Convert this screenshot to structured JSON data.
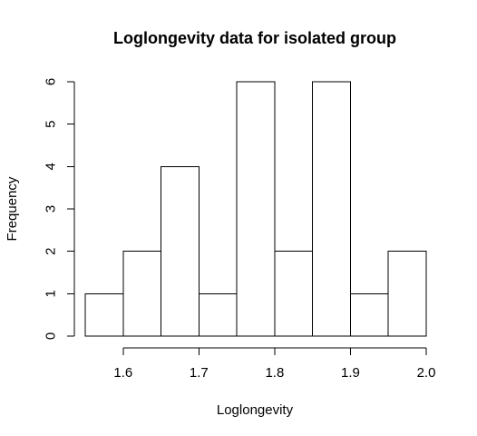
{
  "chart_data": {
    "type": "bar",
    "title": "Loglongevity data for isolated group",
    "xlabel": "Loglongevity",
    "ylabel": "Frequency",
    "bin_edges": [
      1.55,
      1.6,
      1.65,
      1.7,
      1.75,
      1.8,
      1.85,
      1.9,
      1.95,
      2.0
    ],
    "values": [
      1,
      2,
      4,
      1,
      6,
      2,
      6,
      1,
      2
    ],
    "xlim": [
      1.55,
      2.0
    ],
    "ylim": [
      0,
      6
    ],
    "x_ticks": [
      "1.6",
      "1.7",
      "1.8",
      "1.9",
      "2.0"
    ],
    "y_ticks": [
      "0",
      "1",
      "2",
      "3",
      "4",
      "5",
      "6"
    ],
    "grid": false,
    "colors": {
      "bar_fill": "#ffffff",
      "bar_stroke": "#000000",
      "axis": "#000000"
    }
  }
}
